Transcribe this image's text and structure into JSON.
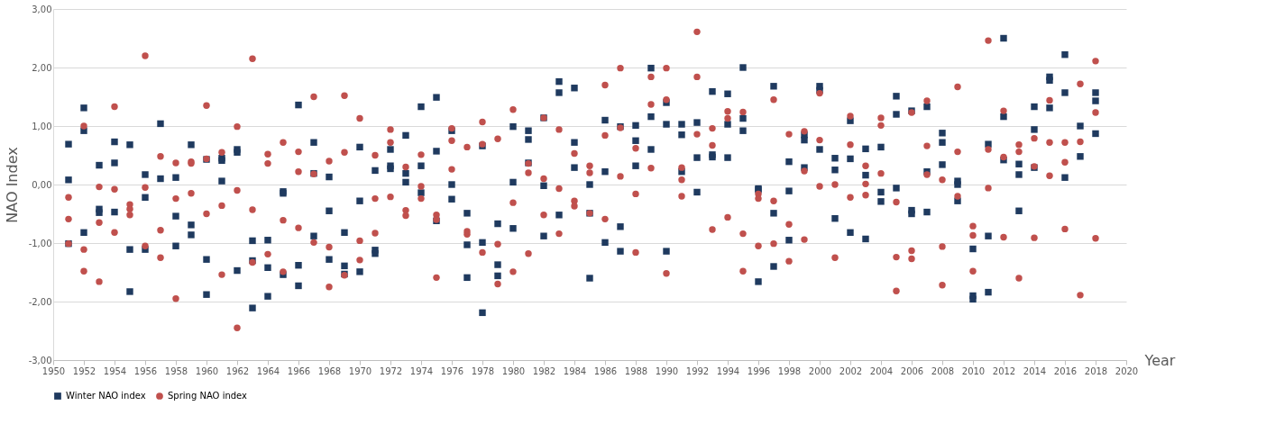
{
  "chart_data": {
    "type": "scatter",
    "xlabel": "Year",
    "ylabel": "NAO Index",
    "xlim": [
      1950,
      2020
    ],
    "xticks": [
      1950,
      1952,
      1954,
      1956,
      1958,
      1960,
      1962,
      1964,
      1966,
      1968,
      1970,
      1972,
      1974,
      1976,
      1978,
      1980,
      1982,
      1984,
      1986,
      1988,
      1990,
      1992,
      1994,
      1996,
      1998,
      2000,
      2002,
      2004,
      2006,
      2008,
      2010,
      2012,
      2014,
      2016,
      2018,
      2020
    ],
    "ylim": [
      -3,
      3
    ],
    "yticks": [
      {
        "value": -3,
        "label": "-3,00"
      },
      {
        "value": -2,
        "label": "-2,00"
      },
      {
        "value": -1,
        "label": "-1,00"
      },
      {
        "value": 0,
        "label": "0,00"
      },
      {
        "value": 1,
        "label": "1,00"
      },
      {
        "value": 2,
        "label": "2,00"
      },
      {
        "value": 3,
        "label": "3,00"
      }
    ],
    "grid": "y",
    "legend": "bottom",
    "series": [
      {
        "name": "Winter NAO index",
        "color": "#1f3a5f",
        "marker": "square",
        "x": [
          1951,
          1951,
          1951,
          1952,
          1952,
          1952,
          1953,
          1953,
          1953,
          1954,
          1954,
          1954,
          1955,
          1955,
          1955,
          1956,
          1956,
          1956,
          1957,
          1957,
          1958,
          1958,
          1958,
          1959,
          1959,
          1959,
          1960,
          1960,
          1960,
          1961,
          1961,
          1961,
          1962,
          1962,
          1962,
          1963,
          1963,
          1963,
          1964,
          1964,
          1964,
          1965,
          1965,
          1965,
          1966,
          1966,
          1966,
          1967,
          1967,
          1967,
          1968,
          1968,
          1968,
          1969,
          1969,
          1969,
          1970,
          1970,
          1970,
          1971,
          1971,
          1971,
          1972,
          1972,
          1972,
          1973,
          1973,
          1973,
          1974,
          1974,
          1974,
          1975,
          1975,
          1975,
          1976,
          1976,
          1976,
          1977,
          1977,
          1977,
          1978,
          1978,
          1978,
          1979,
          1979,
          1979,
          1980,
          1980,
          1980,
          1981,
          1981,
          1981,
          1982,
          1982,
          1982,
          1983,
          1983,
          1983,
          1984,
          1984,
          1984,
          1985,
          1985,
          1985,
          1986,
          1986,
          1986,
          1987,
          1987,
          1987,
          1988,
          1988,
          1988,
          1989,
          1989,
          1989,
          1990,
          1990,
          1990,
          1991,
          1991,
          1991,
          1992,
          1992,
          1992,
          1993,
          1993,
          1993,
          1994,
          1994,
          1994,
          1995,
          1995,
          1995,
          1996,
          1996,
          1996,
          1997,
          1997,
          1997,
          1998,
          1998,
          1998,
          1999,
          1999,
          1999,
          2000,
          2000,
          2000,
          2001,
          2001,
          2001,
          2002,
          2002,
          2002,
          2003,
          2003,
          2003,
          2004,
          2004,
          2004,
          2005,
          2005,
          2005,
          2006,
          2006,
          2006,
          2007,
          2007,
          2007,
          2008,
          2008,
          2008,
          2009,
          2009,
          2009,
          2010,
          2010,
          2010,
          2011,
          2011,
          2011,
          2012,
          2012,
          2012,
          2013,
          2013,
          2013,
          2014,
          2014,
          2014,
          2015,
          2015,
          2015,
          2016,
          2016,
          2016,
          2017,
          2017,
          2018,
          2018,
          2018
        ],
        "values": [
          0.69,
          0.08,
          -1.01,
          1.31,
          0.92,
          -0.82,
          0.33,
          -0.42,
          -0.48,
          0.73,
          0.37,
          -0.47,
          0.68,
          -1.11,
          -1.83,
          0.17,
          -0.22,
          -1.11,
          1.04,
          0.1,
          0.12,
          -0.54,
          -1.05,
          0.68,
          -0.69,
          -0.86,
          0.43,
          -1.28,
          -1.88,
          0.45,
          0.41,
          0.06,
          0.6,
          0.55,
          -1.47,
          -0.96,
          -1.3,
          -2.11,
          -0.95,
          -1.42,
          -1.91,
          -0.12,
          -0.15,
          -1.54,
          1.36,
          -1.38,
          -1.73,
          0.72,
          0.19,
          -0.88,
          0.13,
          -0.45,
          -1.28,
          -0.82,
          -1.39,
          -1.53,
          0.64,
          -0.28,
          -1.49,
          0.24,
          -1.12,
          -1.18,
          0.6,
          0.32,
          0.27,
          0.84,
          0.19,
          0.04,
          1.33,
          0.32,
          -0.14,
          1.49,
          0.57,
          -0.62,
          0.92,
          0.0,
          -0.25,
          -0.49,
          -1.03,
          -1.59,
          0.66,
          -0.99,
          -2.19,
          -0.67,
          -1.37,
          -1.56,
          0.99,
          0.04,
          -0.75,
          0.92,
          0.77,
          0.37,
          1.14,
          -0.02,
          -0.88,
          1.76,
          1.57,
          -0.52,
          1.65,
          0.72,
          0.29,
          0.0,
          -0.49,
          -1.6,
          1.1,
          0.22,
          -0.99,
          0.99,
          -0.72,
          -1.14,
          1.01,
          0.75,
          0.32,
          1.99,
          1.16,
          0.6,
          1.4,
          1.03,
          -1.14,
          1.03,
          0.85,
          0.22,
          1.06,
          0.46,
          -0.13,
          1.59,
          0.51,
          0.47,
          1.55,
          1.03,
          0.46,
          2.0,
          1.13,
          0.92,
          -0.07,
          -0.09,
          -1.66,
          1.68,
          -0.49,
          -1.4,
          0.39,
          -0.11,
          -0.95,
          0.85,
          0.76,
          0.29,
          1.68,
          1.61,
          0.6,
          0.45,
          0.25,
          -0.58,
          1.09,
          0.44,
          -0.82,
          0.61,
          0.16,
          -0.93,
          0.64,
          -0.13,
          -0.29,
          1.51,
          1.2,
          -0.06,
          1.26,
          -0.44,
          -0.5,
          1.33,
          0.22,
          -0.47,
          0.88,
          0.72,
          0.34,
          0.06,
          0.0,
          -0.28,
          -1.1,
          -1.9,
          -1.96,
          0.69,
          -0.88,
          -1.84,
          2.5,
          1.16,
          0.42,
          0.35,
          0.17,
          -0.45,
          1.33,
          0.94,
          0.29,
          1.84,
          1.78,
          1.31,
          2.22,
          1.57,
          0.12,
          1.0,
          0.48,
          1.57,
          1.43,
          0.87
        ]
      },
      {
        "name": "Spring NAO index",
        "color": "#c0504d",
        "marker": "circle",
        "x": [
          1951,
          1951,
          1951,
          1952,
          1952,
          1952,
          1953,
          1953,
          1953,
          1954,
          1954,
          1954,
          1955,
          1955,
          1955,
          1956,
          1956,
          1956,
          1957,
          1957,
          1957,
          1958,
          1958,
          1958,
          1959,
          1959,
          1959,
          1960,
          1960,
          1960,
          1961,
          1961,
          1961,
          1962,
          1962,
          1962,
          1963,
          1963,
          1963,
          1964,
          1964,
          1964,
          1965,
          1965,
          1965,
          1966,
          1966,
          1966,
          1967,
          1967,
          1967,
          1968,
          1968,
          1968,
          1969,
          1969,
          1969,
          1970,
          1970,
          1970,
          1971,
          1971,
          1971,
          1972,
          1972,
          1972,
          1973,
          1973,
          1973,
          1974,
          1974,
          1974,
          1975,
          1975,
          1975,
          1976,
          1976,
          1976,
          1977,
          1977,
          1977,
          1978,
          1978,
          1978,
          1979,
          1979,
          1979,
          1980,
          1980,
          1980,
          1981,
          1981,
          1981,
          1982,
          1982,
          1982,
          1983,
          1983,
          1983,
          1984,
          1984,
          1984,
          1985,
          1985,
          1985,
          1986,
          1986,
          1986,
          1987,
          1987,
          1987,
          1988,
          1988,
          1988,
          1989,
          1989,
          1989,
          1990,
          1990,
          1990,
          1991,
          1991,
          1991,
          1992,
          1992,
          1992,
          1993,
          1993,
          1993,
          1994,
          1994,
          1994,
          1995,
          1995,
          1995,
          1996,
          1996,
          1996,
          1997,
          1997,
          1997,
          1998,
          1998,
          1998,
          1999,
          1999,
          1999,
          2000,
          2000,
          2000,
          2001,
          2001,
          2002,
          2002,
          2002,
          2003,
          2003,
          2003,
          2004,
          2004,
          2004,
          2005,
          2005,
          2005,
          2006,
          2006,
          2006,
          2007,
          2007,
          2007,
          2008,
          2008,
          2008,
          2009,
          2009,
          2009,
          2010,
          2010,
          2010,
          2011,
          2011,
          2011,
          2012,
          2012,
          2012,
          2013,
          2013,
          2013,
          2014,
          2014,
          2014,
          2015,
          2015,
          2015,
          2016,
          2016,
          2016,
          2017,
          2017,
          2017,
          2018,
          2018,
          2018
        ],
        "values": [
          -0.22,
          -0.59,
          -1.01,
          1.0,
          -1.11,
          -1.48,
          -0.04,
          -0.65,
          -1.66,
          1.33,
          -0.08,
          -0.82,
          -0.34,
          -0.42,
          -0.52,
          2.2,
          -0.05,
          -1.05,
          0.48,
          -0.78,
          -1.25,
          0.37,
          -0.24,
          -1.95,
          0.39,
          0.36,
          -0.15,
          1.35,
          0.44,
          -0.5,
          0.55,
          -0.36,
          -1.54,
          0.99,
          -0.1,
          -2.45,
          2.15,
          -0.43,
          -1.33,
          0.52,
          0.36,
          -1.19,
          0.72,
          -0.61,
          -1.49,
          0.56,
          0.22,
          -0.74,
          1.5,
          0.18,
          -0.99,
          0.4,
          -1.07,
          -1.75,
          1.52,
          0.55,
          -1.55,
          1.13,
          -0.96,
          -1.29,
          0.5,
          -0.24,
          -0.83,
          0.94,
          0.72,
          -0.21,
          0.3,
          -0.44,
          -0.53,
          0.51,
          -0.03,
          -0.24,
          -0.52,
          -0.6,
          -1.59,
          0.96,
          0.75,
          0.26,
          0.64,
          -0.8,
          -0.85,
          1.07,
          0.69,
          -1.16,
          0.78,
          -1.02,
          -1.7,
          1.28,
          -0.31,
          -1.49,
          0.36,
          0.2,
          -1.18,
          1.14,
          0.1,
          -0.52,
          0.94,
          -0.07,
          -0.84,
          0.53,
          -0.28,
          -0.37,
          0.32,
          0.2,
          -0.49,
          1.7,
          0.84,
          -0.59,
          1.99,
          0.97,
          0.14,
          0.62,
          -0.16,
          -1.16,
          1.84,
          1.37,
          0.28,
          1.99,
          1.45,
          -1.52,
          0.29,
          0.08,
          -0.2,
          2.61,
          1.84,
          0.86,
          0.96,
          0.67,
          -0.77,
          1.25,
          1.13,
          -0.56,
          1.24,
          -0.84,
          -1.48,
          -0.16,
          -0.24,
          -1.05,
          1.45,
          -0.28,
          -1.01,
          0.86,
          -0.68,
          -1.31,
          0.91,
          0.23,
          -0.94,
          1.56,
          0.76,
          -0.03,
          0.0,
          -1.25,
          1.17,
          0.68,
          -0.22,
          0.32,
          0.01,
          -0.18,
          1.14,
          1.01,
          0.19,
          -0.3,
          -1.24,
          -1.82,
          1.23,
          -1.13,
          -1.27,
          1.43,
          0.66,
          0.17,
          0.08,
          -1.06,
          -1.72,
          1.67,
          0.56,
          -0.2,
          -0.71,
          -0.87,
          -1.48,
          2.46,
          0.6,
          -0.06,
          1.26,
          0.47,
          -0.9,
          0.68,
          0.56,
          -1.6,
          0.79,
          0.31,
          -0.91,
          1.44,
          0.72,
          0.15,
          0.72,
          0.38,
          -0.76,
          1.72,
          0.73,
          -1.89,
          2.11,
          1.23,
          -0.92
        ]
      }
    ]
  }
}
